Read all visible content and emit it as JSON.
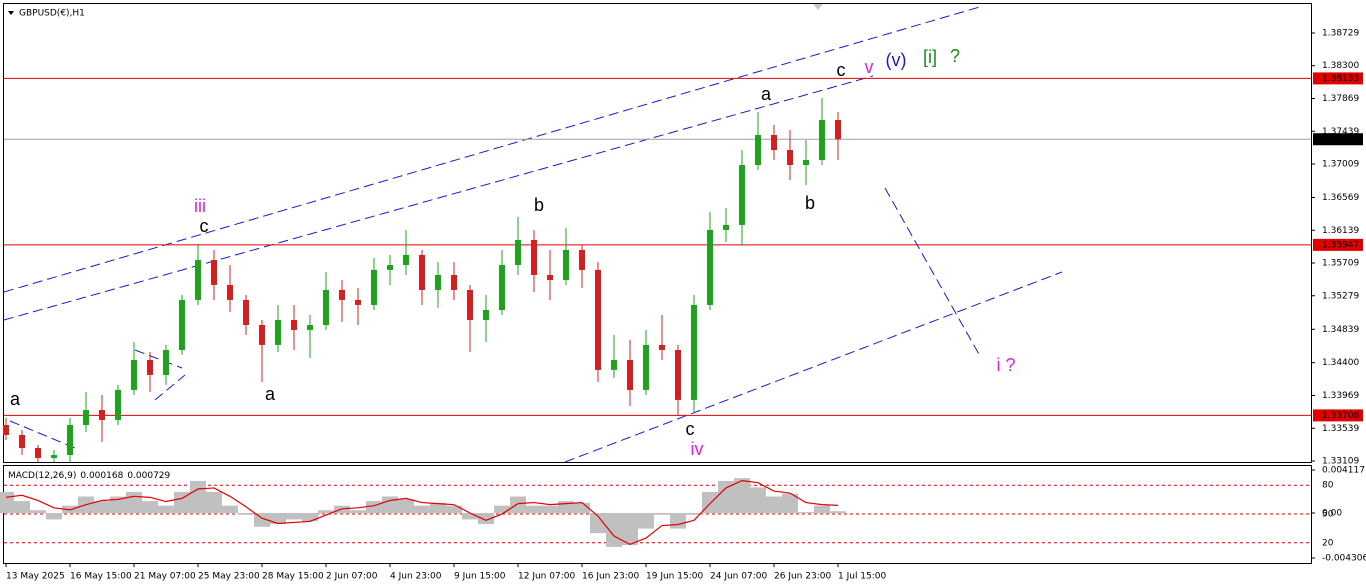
{
  "chart_data": [
    {
      "type": "candlestick",
      "title": "GBPUSD(€),H1",
      "categories": [
        "13 May 2025",
        null,
        null,
        null,
        "16 May 15:00",
        null,
        null,
        null,
        "21 May 07:00",
        null,
        null,
        null,
        "25 May 23:00",
        null,
        null,
        null,
        "28 May 15:00",
        null,
        null,
        null,
        "2 Jun 07:00",
        null,
        null,
        null,
        "4 Jun 23:00",
        null,
        null,
        null,
        "9 Jun 15:00",
        null,
        null,
        null,
        "12 Jun 07:00",
        null,
        null,
        null,
        "16 Jun 23:00",
        null,
        null,
        null,
        "19 Jun 15:00",
        null,
        null,
        null,
        "24 Jun 07:00",
        null,
        null,
        null,
        "26 Jun 23:00",
        null,
        null,
        null,
        "1 Jul 15:00"
      ],
      "open": [
        1.33582,
        1.33451,
        1.3328,
        1.33149,
        1.33188,
        1.33582,
        1.33779,
        1.33648,
        1.34042,
        1.34436,
        1.34239,
        1.34567,
        1.35224,
        1.35749,
        1.35421,
        1.35224,
        1.34895,
        1.34633,
        1.34961,
        1.3483,
        1.34895,
        1.35355,
        1.35224,
        1.35158,
        1.35618,
        1.35683,
        1.35815,
        1.35355,
        1.35552,
        1.35355,
        1.34961,
        1.35092,
        1.35683,
        1.36012,
        1.35552,
        1.35486,
        1.3588,
        1.35618,
        1.34305,
        1.34436,
        1.34042,
        1.34633,
        1.34567,
        1.33911,
        1.35158,
        1.36143,
        1.36209,
        1.36996,
        1.3739,
        1.37193,
        1.36996,
        1.37062,
        1.37587
      ],
      "high": [
        1.33674,
        1.33517,
        1.3332,
        1.33254,
        1.33674,
        1.34016,
        1.33976,
        1.34108,
        1.34672,
        1.34541,
        1.34633,
        1.35289,
        1.35959,
        1.3588,
        1.35683,
        1.35289,
        1.34961,
        1.35158,
        1.35158,
        1.35027,
        1.35591,
        1.35486,
        1.35381,
        1.35775,
        1.35815,
        1.36143,
        1.3588,
        1.35723,
        1.35723,
        1.35421,
        1.35289,
        1.3588,
        1.36314,
        1.36143,
        1.3588,
        1.36169,
        1.35946,
        1.35723,
        1.34764,
        1.34699,
        1.3483,
        1.35027,
        1.34633,
        1.35289,
        1.36379,
        1.36432,
        1.37193,
        1.37692,
        1.37522,
        1.37456,
        1.37325,
        1.37876,
        1.37692
      ],
      "low": [
        1.33385,
        1.33188,
        1.33097,
        1.33097,
        1.33097,
        1.3349,
        1.33359,
        1.33582,
        1.33976,
        1.34016,
        1.34108,
        1.34502,
        1.35158,
        1.35224,
        1.35066,
        1.34764,
        1.34147,
        1.34541,
        1.34567,
        1.34462,
        1.3483,
        1.34935,
        1.34895,
        1.35092,
        1.35421,
        1.35552,
        1.35158,
        1.35119,
        1.35224,
        1.34541,
        1.34672,
        1.35027,
        1.35552,
        1.35329,
        1.35224,
        1.35421,
        1.35381,
        1.34147,
        1.342,
        1.33832,
        1.33976,
        1.34436,
        1.33714,
        1.33753,
        1.35092,
        1.35985,
        1.35946,
        1.36931,
        1.37062,
        1.36799,
        1.36734,
        1.36996,
        1.37062
      ],
      "close": [
        1.33451,
        1.3328,
        1.33149,
        1.33188,
        1.33582,
        1.33779,
        1.33648,
        1.34042,
        1.34436,
        1.34239,
        1.34567,
        1.35224,
        1.35749,
        1.35421,
        1.35224,
        1.34895,
        1.34633,
        1.34961,
        1.3483,
        1.34895,
        1.35355,
        1.35224,
        1.35158,
        1.35618,
        1.35683,
        1.35815,
        1.35355,
        1.35552,
        1.35355,
        1.34961,
        1.35092,
        1.35683,
        1.36012,
        1.35552,
        1.35486,
        1.3588,
        1.35618,
        1.34305,
        1.34436,
        1.34042,
        1.34633,
        1.34567,
        1.33911,
        1.35158,
        1.36143,
        1.36209,
        1.36996,
        1.3739,
        1.37193,
        1.36996,
        1.37062,
        1.37587,
        1.37334
      ],
      "up_color": "#1fa31f",
      "down_color": "#d42020",
      "ylim": [
        1.33096,
        1.3911
      ],
      "yticks": [
        1.38729,
        {
          "value": 1.383,
          "label": "1.38300"
        },
        1.37869,
        1.37439,
        1.37009,
        1.36569,
        1.36139,
        1.35709,
        1.35279,
        1.34839,
        {
          "value": 1.344,
          "label": "1.34400"
        },
        1.33969,
        1.33539,
        1.33109
      ],
      "levels": [
        1.38133,
        1.35947,
        1.33708
      ],
      "level_color": "#e00000",
      "current_price": 1.37334,
      "annotations": [
        {
          "text": "a",
          "color": "#000000"
        },
        {
          "text": "c",
          "color": "#000000"
        },
        {
          "text": "iii",
          "color": "#e020e0"
        },
        {
          "text": "a",
          "color": "#000000"
        },
        {
          "text": "b",
          "color": "#000000"
        },
        {
          "text": "a",
          "color": "#000000"
        },
        {
          "text": "b",
          "color": "#000000"
        },
        {
          "text": "c",
          "color": "#000000"
        },
        {
          "text": "v",
          "color": "#e020e0"
        },
        {
          "text": "(v)",
          "color": "#1a1acc"
        },
        {
          "text": "[i]",
          "color": "#1a8a1a"
        },
        {
          "text": "?",
          "color": "#1a8a1a"
        },
        {
          "text": "c",
          "color": "#000000"
        },
        {
          "text": "iv",
          "color": "#e020e0"
        },
        {
          "text": "i ?",
          "color": "#e020e0"
        }
      ]
    },
    {
      "type": "macd",
      "title": "MACD(12,26,9)",
      "histogram": [
        0.002018,
        0.00114,
        0.000263,
        -0.000614,
        0.000702,
        0.001579,
        0.00114,
        0.001579,
        0.002018,
        0.00114,
        0.000702,
        0.002018,
        0.003071,
        0.002018,
        0.000702,
        -0.000175,
        -0.001316,
        -0.001053,
        -0.000614,
        -0.00079,
        0.000263,
        0.000702,
        0.000263,
        0.00114,
        0.001579,
        0.001316,
        0.000702,
        0.000965,
        0.000702,
        -0.000614,
        -0.001053,
        0.000702,
        0.001579,
        0.000702,
        0.000702,
        0.00114,
        0.000965,
        -0.00193,
        -0.003246,
        -0.003071,
        -0.001492,
        -0.000175,
        -0.001492,
        -0.000175,
        0.002018,
        0.003071,
        0.003334,
        0.002457,
        0.001579,
        0.001843,
        8.8e-05,
        0.000702,
        0.000168
      ],
      "histogram_color": "#c0c0c0",
      "signal": [
        0.0015,
        0.0017,
        0.0012,
        0.0005,
        0.0003,
        0.0008,
        0.0012,
        0.0013,
        0.0016,
        0.0015,
        0.0011,
        0.0014,
        0.0023,
        0.0024,
        0.0016,
        0.0006,
        -0.0005,
        -0.001,
        -0.0009,
        -0.0008,
        -0.0002,
        0.0004,
        0.0005,
        0.0007,
        0.0012,
        0.0014,
        0.001,
        0.0009,
        0.0008,
        0,
        -0.0007,
        -0.0001,
        0.0009,
        0.001,
        0.0008,
        0.0009,
        0.001,
        -0.0003,
        -0.0022,
        -0.003,
        -0.0024,
        -0.0012,
        -0.0011,
        -0.0007,
        0.0009,
        0.0024,
        0.0031,
        0.0029,
        0.0021,
        0.0019,
        0.001,
        0.0008,
        0.000729
      ],
      "signal_color": "#e00000",
      "ylim": [
        -0.004306,
        0.004117
      ],
      "yticks": [
        0.004117,
        {
          "value": 0,
          "label": "0.00"
        },
        -0.004306
      ],
      "levels": [
        80,
        50,
        20
      ],
      "level_ylim": [
        0,
        100
      ]
    }
  ]
}
